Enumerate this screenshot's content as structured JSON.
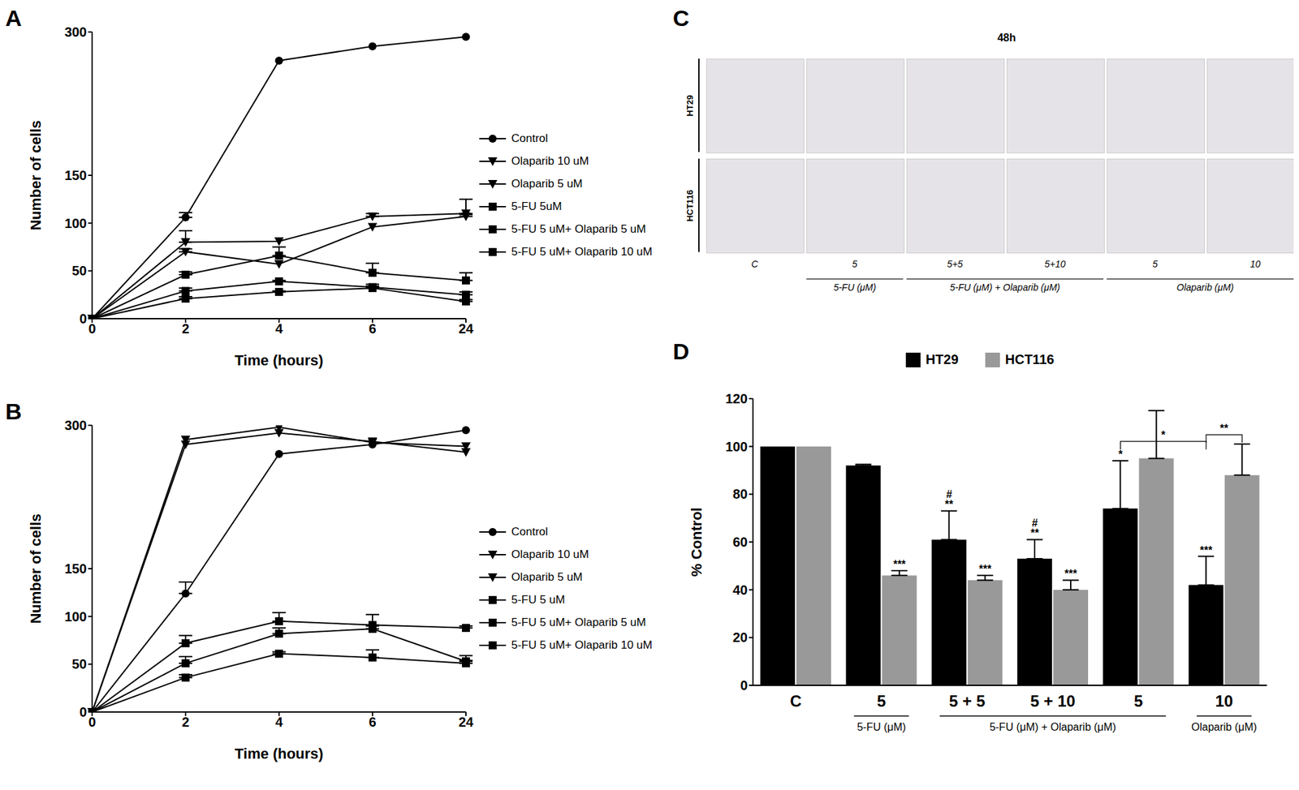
{
  "chart_data": [
    {
      "type": "line",
      "title": "A",
      "x_label": "Time (hours)",
      "y_label": "Number of cells",
      "categories": [
        0,
        2,
        4,
        6,
        24
      ],
      "ylim": [
        0,
        300
      ],
      "yticks": [
        0,
        50,
        100,
        150,
        300
      ],
      "legend": "right",
      "series": [
        {
          "name": "Control",
          "color": "#000000",
          "marker": "circle",
          "values": [
            0,
            106,
            270,
            285,
            295
          ],
          "errors": [
            null,
            5,
            null,
            null,
            null
          ]
        },
        {
          "name": "Olaparib 10 uM",
          "color": "#000000",
          "marker": "triangle-down",
          "values": [
            0,
            80,
            81,
            107,
            110
          ],
          "errors": [
            null,
            12,
            null,
            3,
            15
          ]
        },
        {
          "name": "Olaparib 5 uM",
          "color": "#000000",
          "marker": "triangle-down",
          "values": [
            0,
            70,
            57,
            96,
            107
          ],
          "errors": [
            null,
            3,
            null,
            null,
            2
          ]
        },
        {
          "name": "5-FU 5uM",
          "color": "#000000",
          "marker": "square",
          "values": [
            0,
            46,
            66,
            48,
            40
          ],
          "errors": [
            null,
            3,
            9,
            10,
            8
          ]
        },
        {
          "name": "5-FU 5 uM+ Olaparib 5 uM",
          "color": "#000000",
          "marker": "square",
          "values": [
            0,
            29,
            39,
            33,
            25
          ],
          "errors": [
            null,
            3,
            1,
            3,
            3
          ]
        },
        {
          "name": "5-FU 5 uM+ Olaparib 10 uM",
          "color": "#000000",
          "marker": "square",
          "values": [
            0,
            21,
            28,
            32,
            18
          ],
          "errors": [
            null,
            2,
            1,
            2,
            2
          ]
        }
      ]
    },
    {
      "type": "line",
      "title": "B",
      "x_label": "Time (hours)",
      "y_label": "Number of cells",
      "categories": [
        0,
        2,
        4,
        6,
        24
      ],
      "ylim": [
        0,
        300
      ],
      "yticks": [
        0,
        50,
        100,
        150,
        300
      ],
      "legend": "right",
      "series": [
        {
          "name": "Control",
          "color": "#000000",
          "marker": "circle",
          "values": [
            0,
            124,
            270,
            280,
            295
          ],
          "errors": [
            null,
            12,
            null,
            null,
            null
          ]
        },
        {
          "name": "Olaparib 10 uM",
          "color": "#000000",
          "marker": "triangle-down",
          "values": [
            0,
            285,
            298,
            282,
            278
          ],
          "errors": [
            null,
            null,
            null,
            null,
            null
          ]
        },
        {
          "name": "Olaparib 5 uM",
          "color": "#000000",
          "marker": "triangle-down",
          "values": [
            0,
            280,
            292,
            283,
            272
          ],
          "errors": [
            null,
            null,
            null,
            null,
            null
          ]
        },
        {
          "name": "5-FU 5 uM",
          "color": "#000000",
          "marker": "square",
          "values": [
            0,
            72,
            95,
            91,
            88
          ],
          "errors": [
            null,
            8,
            9,
            11,
            2
          ]
        },
        {
          "name": "5-FU 5 uM+ Olaparib 5 uM",
          "color": "#000000",
          "marker": "square",
          "values": [
            0,
            51,
            82,
            87,
            53
          ],
          "errors": [
            null,
            7,
            6,
            3,
            6
          ]
        },
        {
          "name": "5-FU 5 uM+ Olaparib 10 uM",
          "color": "#000000",
          "marker": "square",
          "values": [
            0,
            36,
            61,
            57,
            51
          ],
          "errors": [
            null,
            3,
            2,
            8,
            3
          ]
        }
      ]
    },
    {
      "type": "images",
      "title": "C",
      "subtitle": "48h",
      "rows": [
        "HT29",
        "HCT116"
      ],
      "columns": [
        "C",
        "5",
        "5+5",
        "5+10",
        "5",
        "10"
      ],
      "column_groups": [
        {
          "label": "5-FU (μM)",
          "span": [
            1,
            1
          ]
        },
        {
          "label": "5-FU (μM) + Olaparib (μM)",
          "span": [
            2,
            3
          ]
        },
        {
          "label": "Olaparib (μM)",
          "span": [
            4,
            5
          ]
        }
      ]
    },
    {
      "type": "bar",
      "title": "D",
      "y_label": "% Control",
      "categories": [
        "C",
        "5",
        "5 + 5",
        "5 + 10",
        "5",
        "10"
      ],
      "category_groups": [
        {
          "label": "5-FU (μM)",
          "span": [
            1,
            1
          ]
        },
        {
          "label": "5-FU (μM) + Olaparib (μM)",
          "span": [
            2,
            4
          ]
        },
        {
          "label": "Olaparib (μM)",
          "span": [
            5,
            5
          ]
        }
      ],
      "ylim": [
        0,
        120
      ],
      "yticks": [
        0,
        20,
        40,
        60,
        80,
        100,
        120
      ],
      "legend": "top",
      "series": [
        {
          "name": "HT29",
          "color": "#000000",
          "values": [
            100,
            92,
            61,
            53,
            74,
            42
          ],
          "errors": [
            null,
            0.5,
            12,
            8,
            20,
            12
          ],
          "annotations": [
            [],
            [],
            [
              "#",
              "**"
            ],
            [
              "#",
              "**"
            ],
            [
              "*"
            ],
            [
              "***"
            ]
          ]
        },
        {
          "name": "HCT116",
          "color": "#999999",
          "values": [
            100,
            46,
            44,
            40,
            95,
            88
          ],
          "errors": [
            null,
            2,
            2,
            4,
            20,
            13
          ],
          "annotations": [
            [],
            [
              "***"
            ],
            [
              "***"
            ],
            [
              "***"
            ],
            [],
            []
          ]
        }
      ],
      "brackets": [
        {
          "label": "*",
          "from": {
            "series": "HT29",
            "index": 4
          },
          "to": {
            "series": "HT29",
            "index": 5
          }
        },
        {
          "label": "**",
          "from": {
            "series": "HT29",
            "index": 5
          },
          "to": {
            "series": "HCT116",
            "index": 5
          }
        }
      ]
    }
  ]
}
